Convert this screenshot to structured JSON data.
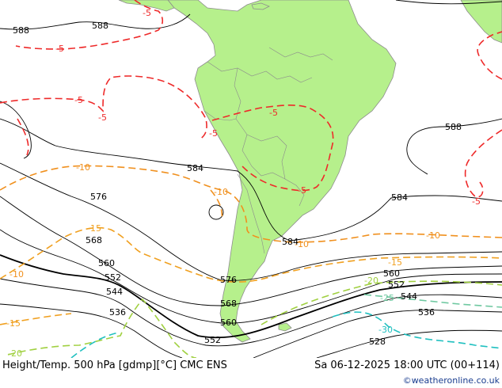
{
  "title_left": "Height/Temp. 500 hPa [gdmp][°C] CMC ENS",
  "title_right": "Sa 06-12-2025 18:00 UTC (00+114)",
  "credit": "©weatheronline.co.uk",
  "colors": {
    "land": "#b6f08c",
    "coast": "#8c8c8c",
    "height_contour": "#000000",
    "temp_minus5": "#ee2a2a",
    "temp_minus10": "#f0901e",
    "temp_minus15": "#f0a020",
    "temp_minus20": "#a0d040",
    "temp_minus25": "#6ec8a0",
    "temp_minus30": "#20c0c0"
  },
  "labels": {
    "h588a": "588",
    "h588b": "588",
    "h588c": "588",
    "h584a": "584",
    "h584b": "584",
    "h584c": "584",
    "h576a": "576",
    "h576b": "576",
    "h568a": "568",
    "h568b": "568",
    "h560a": "560",
    "h560b": "560",
    "h560c": "560",
    "h552a": "552",
    "h552b": "552",
    "h552c": "552",
    "h544a": "544",
    "h544b": "544",
    "h536a": "536",
    "h536b": "536",
    "h528": "528",
    "t5a": "-5",
    "t5b": "-5",
    "t5c": "-5",
    "t5d": "-5",
    "t5e": "-5",
    "t5f": "-5",
    "t5g": "-5",
    "t5h": "-5",
    "t10a": "-10",
    "t10b": "-10",
    "t10c": "-10",
    "t10d": "-10",
    "t10e": "-10",
    "t15a": "-15",
    "t15b": "-15",
    "t15c": "-15",
    "t20a": "-20",
    "t20b": "-20",
    "t25": "-25",
    "t30": "-30"
  }
}
